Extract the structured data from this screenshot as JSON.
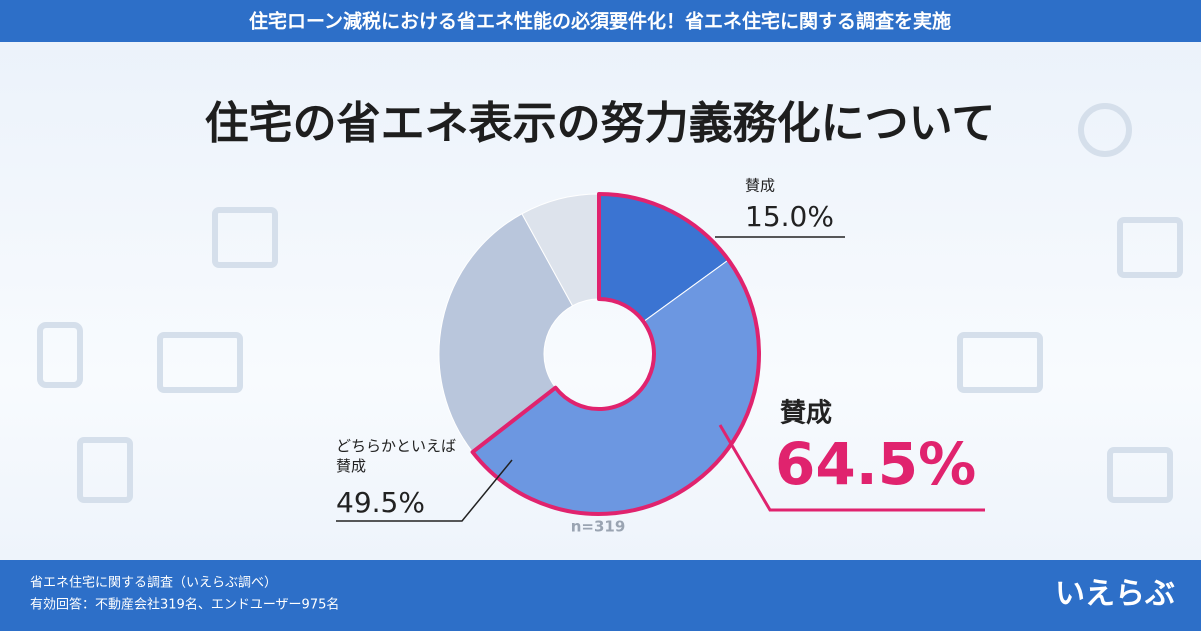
{
  "header": {
    "banner": "住宅ローン減税における省エネ性能の必須要件化！省エネ住宅に関する調査を実施"
  },
  "chart_data": {
    "type": "donut",
    "title": "住宅の省エネ表示の努力義務化について",
    "categories": [
      "賛成",
      "どちらかといえば賛成",
      null,
      null
    ],
    "values": [
      15.0,
      49.5,
      27.5,
      8.0
    ],
    "value_labels": [
      "15.0%",
      "49.5%",
      null,
      null
    ],
    "colors": [
      "#3b74d2",
      "#6c97e1",
      "#b9c6dc",
      "#dde3ec"
    ],
    "highlight_color": "#e0236e",
    "annotation": {
      "label": "賛成",
      "value_label": "64.5%"
    },
    "note": "n=319"
  },
  "footer": {
    "source": "省エネ住宅に関する調査（いえらぶ調べ）",
    "respondents": "有効回答：不動産会社319名、エンドユーザー975名",
    "logo": "いえらぶ"
  }
}
